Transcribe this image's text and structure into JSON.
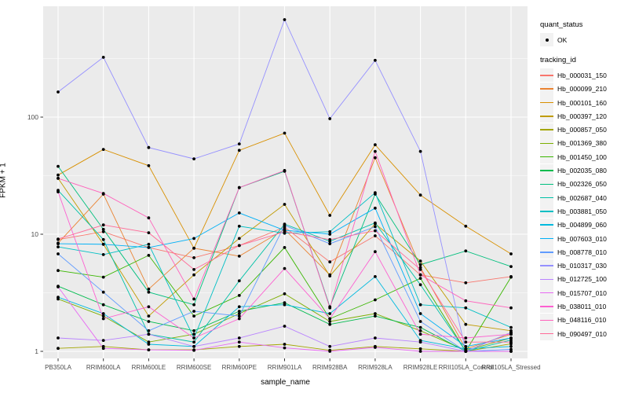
{
  "figure": {
    "background": "#FFFFFF",
    "panel_background": "#EBEBEB",
    "gridline_color": "#FFFFFF",
    "tick_label_color": "#4D4D4D",
    "axis_tick_color": "#333333",
    "point_color": "#000000",
    "legend_key_background": "#F2F2F2"
  },
  "chart_data": {
    "type": "line",
    "title": "",
    "xlabel": "sample_name",
    "ylabel": "FPKM + 1",
    "y_scale": "log10",
    "y_ticks": [
      1,
      10,
      100
    ],
    "y_tick_labels": [
      "1",
      "10",
      "100"
    ],
    "y_minor_ticks": [
      3.162,
      31.62,
      316.2
    ],
    "ylim": [
      0.93,
      890
    ],
    "grid": "on",
    "categories": [
      "PB350LA",
      "RRIM600LA",
      "RRIM600LE",
      "RRIM600SE",
      "RRIM600PE",
      "RRIM901LA",
      "RRIM928BA",
      "RRIM928LA",
      "RRIM928LE",
      "RRII105LA_Control",
      "RRII105LA_Stressed"
    ],
    "series": [
      {
        "name": "Hb_000031_150",
        "color": "#F8766D",
        "values": [
          9.0,
          10.5,
          7.7,
          6.3,
          8.0,
          11.5,
          5.8,
          9.7,
          4.5,
          3.85,
          4.35
        ]
      },
      {
        "name": "Hb_000099_210",
        "color": "#EA8331",
        "values": [
          8.4,
          22.0,
          3.4,
          7.6,
          6.5,
          11.0,
          4.5,
          45.0,
          5.2,
          1.05,
          1.4
        ]
      },
      {
        "name": "Hb_000101_160",
        "color": "#D89000",
        "values": [
          32.0,
          53.0,
          38.5,
          7.6,
          52.0,
          73.0,
          14.5,
          58.0,
          21.6,
          11.7,
          6.8
        ]
      },
      {
        "name": "Hb_000397_120",
        "color": "#C09B00",
        "values": [
          30.0,
          8.2,
          2.0,
          4.5,
          9.2,
          18.0,
          4.4,
          12.3,
          5.9,
          1.7,
          1.5
        ]
      },
      {
        "name": "Hb_000857_050",
        "color": "#A3A500",
        "values": [
          1.06,
          1.1,
          1.03,
          1.03,
          1.1,
          1.15,
          1.02,
          1.1,
          1.05,
          1.0,
          1.16
        ]
      },
      {
        "name": "Hb_001369_380",
        "color": "#7CAE00",
        "values": [
          2.8,
          2.0,
          1.2,
          1.4,
          2.1,
          3.1,
          1.8,
          2.1,
          1.5,
          1.02,
          1.3
        ]
      },
      {
        "name": "Hb_001450_100",
        "color": "#39B600",
        "values": [
          4.9,
          4.3,
          6.6,
          2.0,
          3.0,
          7.7,
          1.9,
          2.75,
          4.2,
          1.0,
          4.3
        ]
      },
      {
        "name": "Hb_002035_080",
        "color": "#00BB4E",
        "values": [
          3.6,
          2.5,
          1.8,
          1.5,
          2.2,
          2.6,
          1.7,
          2.0,
          1.6,
          1.0,
          1.45
        ]
      },
      {
        "name": "Hb_002326_050",
        "color": "#00BF7D",
        "values": [
          38.0,
          11.0,
          3.2,
          2.5,
          25.0,
          34.5,
          2.4,
          22.0,
          5.5,
          7.2,
          5.3
        ]
      },
      {
        "name": "Hb_002687_040",
        "color": "#00C1A7",
        "values": [
          23.7,
          9.0,
          1.4,
          1.2,
          4.0,
          12.2,
          8.7,
          12.5,
          3.7,
          1.0,
          1.25
        ]
      },
      {
        "name": "Hb_003881_050",
        "color": "#00BFC4",
        "values": [
          7.8,
          6.7,
          8.2,
          1.3,
          11.7,
          10.2,
          10.5,
          22.6,
          2.5,
          2.35,
          1.6
        ]
      },
      {
        "name": "Hb_004899_060",
        "color": "#00BADE",
        "values": [
          2.9,
          2.1,
          1.15,
          1.1,
          2.4,
          2.5,
          2.1,
          4.35,
          1.24,
          1.05,
          1.1
        ]
      },
      {
        "name": "Hb_007603_010",
        "color": "#00B0F6",
        "values": [
          8.3,
          8.2,
          7.7,
          9.2,
          15.2,
          10.8,
          10.0,
          16.7,
          2.1,
          1.1,
          1.3
        ]
      },
      {
        "name": "Hb_008778_010",
        "color": "#619CFF",
        "values": [
          6.8,
          3.2,
          1.5,
          2.2,
          2.0,
          11.9,
          8.3,
          11.6,
          1.8,
          1.0,
          1.04
        ]
      },
      {
        "name": "Hb_010317_030",
        "color": "#9590FF",
        "values": [
          164.0,
          324.0,
          55.0,
          44.0,
          59.0,
          680.0,
          97.0,
          305.0,
          51.0,
          1.0,
          1.0
        ]
      },
      {
        "name": "Hb_012725_100",
        "color": "#B983FF",
        "values": [
          1.3,
          1.24,
          1.4,
          1.1,
          1.3,
          1.64,
          1.1,
          1.3,
          1.2,
          1.0,
          1.45
        ]
      },
      {
        "name": "Hb_015707_010",
        "color": "#E76BF3",
        "values": [
          3.55,
          1.06,
          1.03,
          1.02,
          1.2,
          1.07,
          1.0,
          1.08,
          1.0,
          1.0,
          1.0
        ]
      },
      {
        "name": "Hb_038011_010",
        "color": "#FD61D1",
        "values": [
          23.0,
          1.9,
          2.4,
          1.3,
          1.9,
          5.1,
          1.9,
          7.1,
          1.4,
          1.3,
          1.4
        ]
      },
      {
        "name": "Hb_048116_010",
        "color": "#FF62BC",
        "values": [
          30.0,
          22.3,
          13.8,
          2.8,
          25.0,
          35.0,
          2.35,
          51.0,
          4.5,
          2.7,
          2.35
        ]
      },
      {
        "name": "Hb_090497_010",
        "color": "#FF6A98",
        "values": [
          9.1,
          12.0,
          10.3,
          5.0,
          8.0,
          10.5,
          9.0,
          10.7,
          5.0,
          1.2,
          1.2
        ]
      }
    ],
    "legend": {
      "position": "right",
      "quant_status_title": "quant_status",
      "quant_status_items": [
        {
          "label": "OK",
          "marker": "point",
          "color": "#000000"
        }
      ],
      "tracking_title": "tracking_id"
    }
  }
}
